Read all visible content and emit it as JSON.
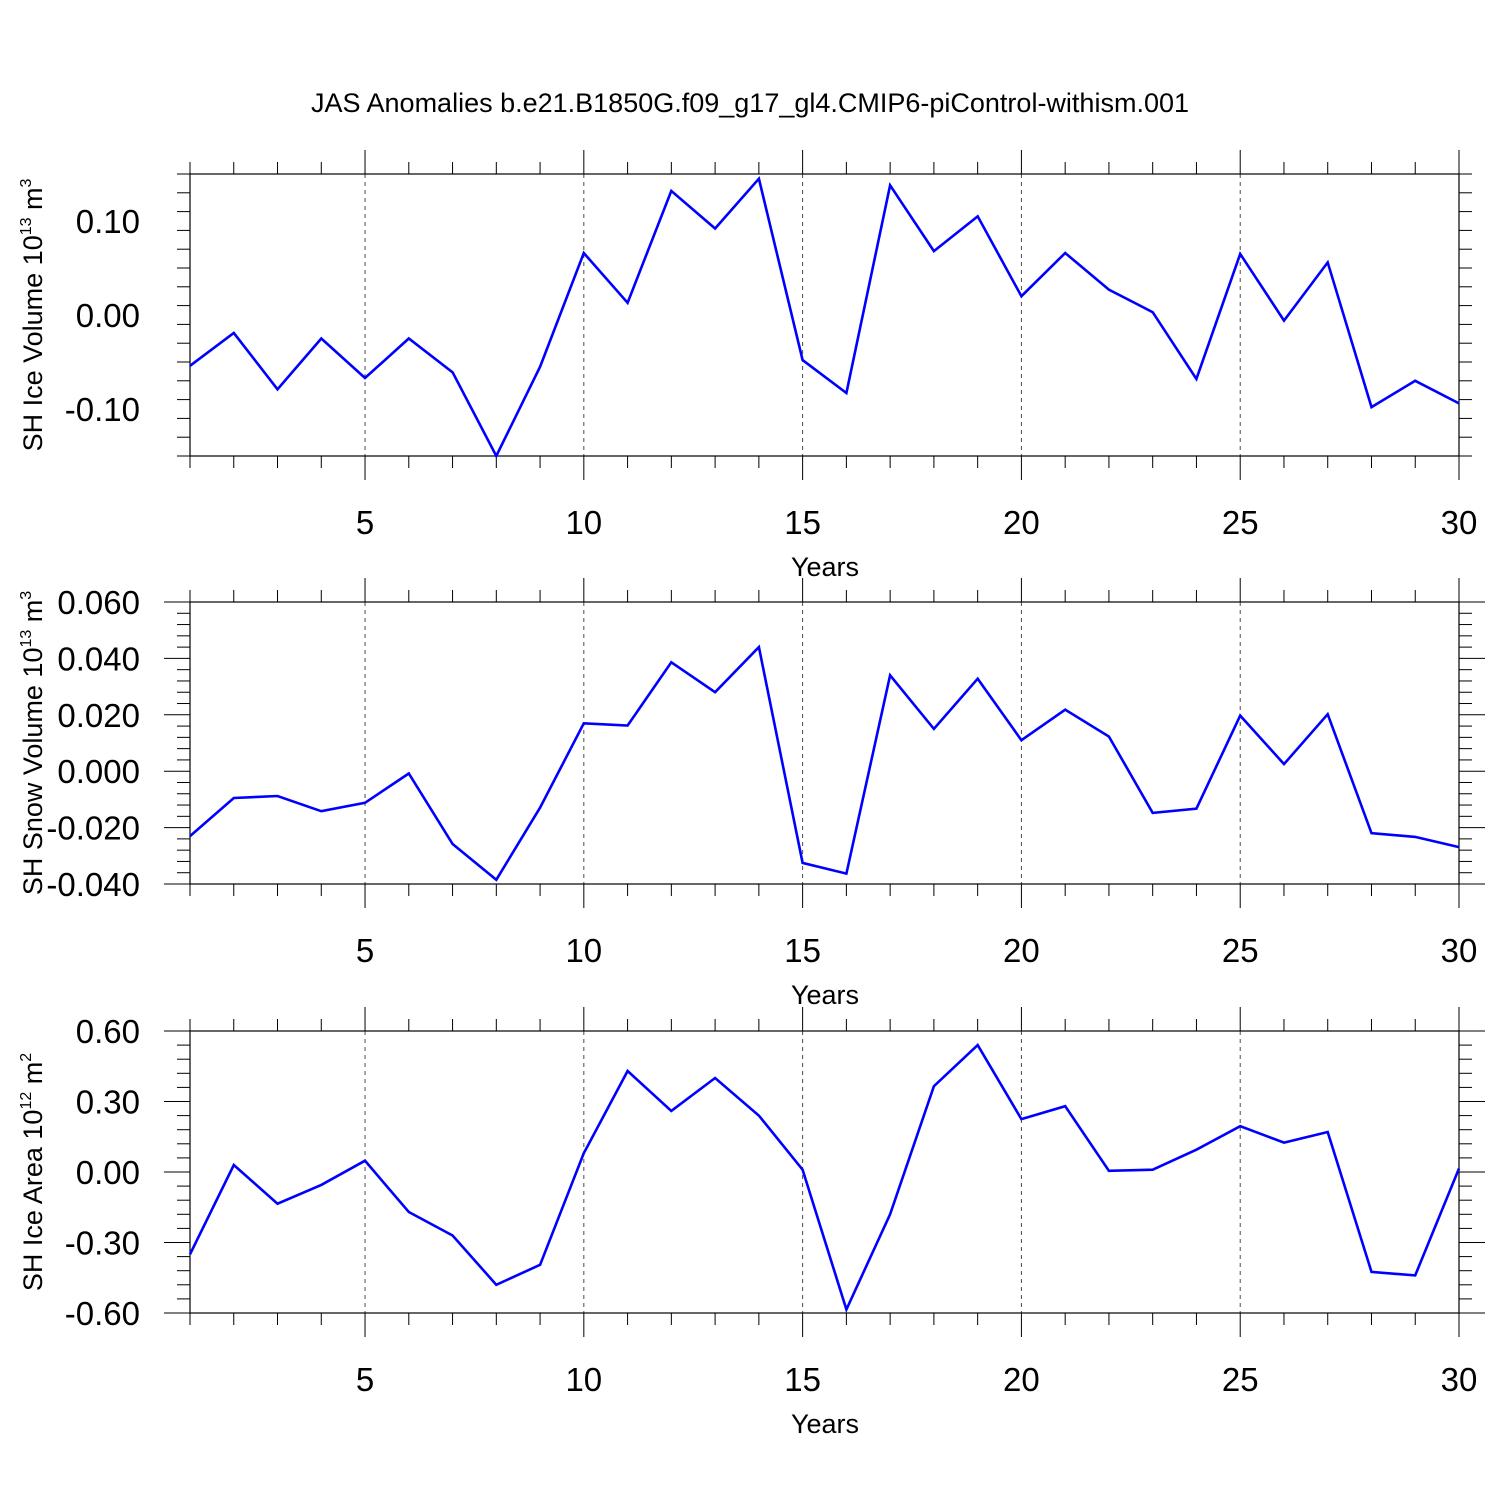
{
  "title": "JAS Anomalies b.e21.B1850G.f09_g17_gl4.CMIP6-piControl-withism.001",
  "colors": {
    "line": "#0000ff",
    "axis": "#000000",
    "grid": "#000000",
    "background": "#ffffff"
  },
  "chart_data": [
    {
      "type": "line",
      "ylabel": {
        "main": "SH Ice Volume 10",
        "sup_exponent": "13",
        "unit": " m",
        "sup_unit": "3"
      },
      "xlabel": "Years",
      "xlim": [
        1,
        30
      ],
      "ylim": [
        -0.15,
        0.15
      ],
      "x_ticks": [
        5,
        10,
        15,
        20,
        25,
        30
      ],
      "y_ticks": [
        -0.1,
        0.0,
        0.1
      ],
      "y_tick_labels": [
        "-0.10",
        "0.00",
        "0.10"
      ],
      "grid": "vertical dashed at major x ticks",
      "x": [
        1,
        2,
        3,
        4,
        5,
        6,
        7,
        8,
        9,
        10,
        11,
        12,
        13,
        14,
        15,
        16,
        17,
        18,
        19,
        20,
        21,
        22,
        23,
        24,
        25,
        26,
        27,
        28,
        29,
        30
      ],
      "series": [
        {
          "values": [
            -0.054,
            -0.019,
            -0.079,
            -0.025,
            -0.067,
            -0.025,
            -0.061,
            -0.15,
            -0.055,
            0.066,
            0.013,
            0.132,
            0.092,
            0.145,
            -0.048,
            -0.083,
            0.138,
            0.068,
            0.105,
            0.02,
            0.066,
            0.027,
            0.003,
            -0.068,
            0.065,
            -0.006,
            0.056,
            -0.098,
            -0.07,
            -0.094
          ]
        }
      ]
    },
    {
      "type": "line",
      "ylabel": {
        "main": "SH Snow Volume 10",
        "sup_exponent": "13",
        "unit": " m",
        "sup_unit": "3"
      },
      "xlabel": "Years",
      "xlim": [
        1,
        30
      ],
      "ylim": [
        -0.04,
        0.06
      ],
      "x_ticks": [
        5,
        10,
        15,
        20,
        25,
        30
      ],
      "y_ticks": [
        -0.04,
        -0.02,
        0.0,
        0.02,
        0.04,
        0.06
      ],
      "y_tick_labels": [
        "-0.040",
        "-0.020",
        "0.000",
        "0.020",
        "0.040",
        "0.060"
      ],
      "grid": "vertical dashed at major x ticks",
      "x": [
        1,
        2,
        3,
        4,
        5,
        6,
        7,
        8,
        9,
        10,
        11,
        12,
        13,
        14,
        15,
        16,
        17,
        18,
        19,
        20,
        21,
        22,
        23,
        24,
        25,
        26,
        27,
        28,
        29,
        30
      ],
      "series": [
        {
          "values": [
            -0.023,
            -0.0095,
            -0.0088,
            -0.0142,
            -0.0112,
            -0.0008,
            -0.0258,
            -0.0385,
            -0.0129,
            0.017,
            0.0162,
            0.0386,
            0.028,
            0.044,
            -0.0325,
            -0.0363,
            0.034,
            0.015,
            0.0328,
            0.011,
            0.0218,
            0.0123,
            -0.0148,
            -0.0133,
            0.0197,
            0.0025,
            0.0202,
            -0.022,
            -0.0233,
            -0.0269
          ]
        }
      ]
    },
    {
      "type": "line",
      "ylabel": {
        "main": "SH Ice Area 10",
        "sup_exponent": "12",
        "unit": " m",
        "sup_unit": "2"
      },
      "xlabel": "Years",
      "xlim": [
        1,
        30
      ],
      "ylim": [
        -0.6,
        0.6
      ],
      "x_ticks": [
        5,
        10,
        15,
        20,
        25,
        30
      ],
      "y_ticks": [
        -0.6,
        -0.3,
        0.0,
        0.3,
        0.6
      ],
      "y_tick_labels": [
        "-0.60",
        "-0.30",
        "0.00",
        "0.30",
        "0.60"
      ],
      "grid": "vertical dashed at major x ticks",
      "x": [
        1,
        2,
        3,
        4,
        5,
        6,
        7,
        8,
        9,
        10,
        11,
        12,
        13,
        14,
        15,
        16,
        17,
        18,
        19,
        20,
        21,
        22,
        23,
        24,
        25,
        26,
        27,
        28,
        29,
        30
      ],
      "series": [
        {
          "values": [
            -0.35,
            0.03,
            -0.135,
            -0.055,
            0.048,
            -0.17,
            -0.27,
            -0.48,
            -0.395,
            0.08,
            0.43,
            0.26,
            0.4,
            0.24,
            0.01,
            -0.585,
            -0.18,
            0.365,
            0.54,
            0.225,
            0.28,
            0.005,
            0.01,
            0.095,
            0.195,
            0.125,
            0.17,
            -0.425,
            -0.44,
            0.015
          ]
        }
      ]
    }
  ]
}
